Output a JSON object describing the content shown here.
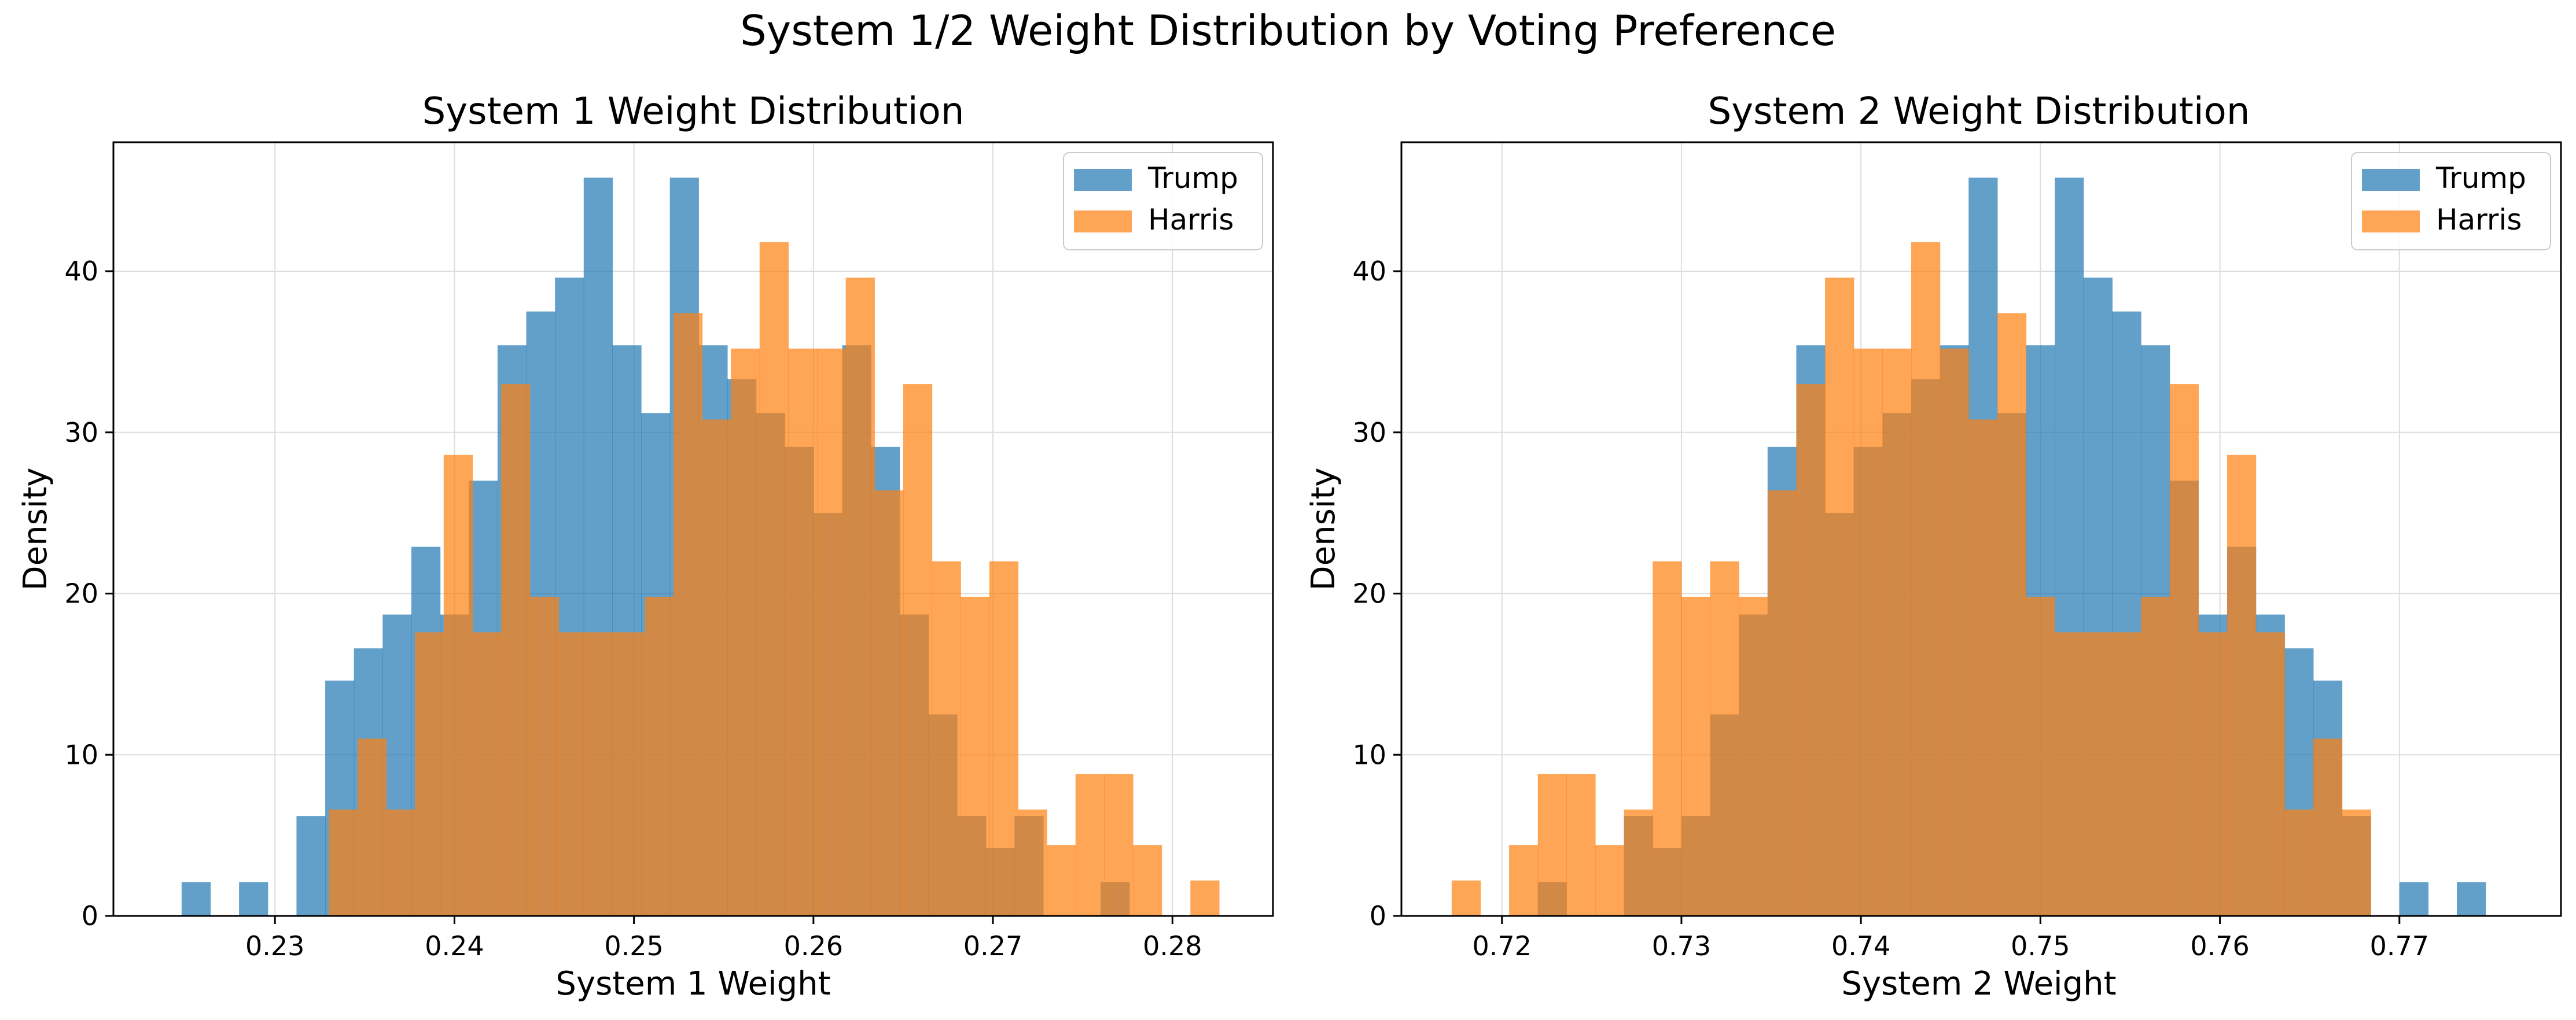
{
  "figure": {
    "title": "System 1/2 Weight Distribution by Voting Preference"
  },
  "colors": {
    "trump": "#1f77b4",
    "harris": "#ff7f0e",
    "grid": "#dddddd",
    "axis": "#000000"
  },
  "chart_data": [
    {
      "type": "histogram",
      "title": "System 1 Weight Distribution",
      "xlabel": "System 1 Weight",
      "ylabel": "Density",
      "xlim": [
        0.221,
        0.2856
      ],
      "ylim": [
        0,
        48
      ],
      "xticks": [
        0.23,
        0.24,
        0.25,
        0.26,
        0.27,
        0.28
      ],
      "xtick_labels": [
        "0.23",
        "0.24",
        "0.25",
        "0.26",
        "0.27",
        "0.28"
      ],
      "yticks": [
        0,
        10,
        20,
        30,
        40
      ],
      "ytick_labels": [
        "0",
        "10",
        "20",
        "30",
        "40"
      ],
      "grid": true,
      "legend_position": "top-right",
      "series": [
        {
          "name": "Trump",
          "color_key": "trump",
          "bins_start": 0.2248,
          "bin_width": 0.0016,
          "values": [
            2.1,
            0,
            2.1,
            0,
            6.2,
            14.6,
            16.6,
            18.7,
            22.9,
            18.7,
            27.0,
            35.4,
            37.5,
            39.6,
            45.8,
            35.4,
            31.2,
            45.8,
            35.4,
            33.3,
            31.2,
            29.1,
            25.0,
            35.4,
            29.1,
            18.7,
            12.5,
            6.2,
            4.2,
            6.2,
            0,
            0,
            2.1
          ]
        },
        {
          "name": "Harris",
          "color_key": "harris",
          "bins_start": 0.2218,
          "bin_width": 0.0016,
          "values": [
            0,
            0,
            0,
            0,
            0,
            0,
            0,
            6.6,
            11.0,
            6.6,
            17.6,
            28.6,
            17.6,
            33.0,
            19.8,
            17.6,
            17.6,
            17.6,
            19.8,
            37.4,
            30.8,
            35.2,
            41.8,
            35.2,
            35.2,
            39.6,
            26.4,
            33.0,
            22.0,
            19.8,
            22.0,
            6.6,
            4.4,
            8.8,
            8.8,
            4.4,
            0,
            2.2
          ]
        }
      ]
    },
    {
      "type": "histogram",
      "title": "System 2 Weight Distribution",
      "xlabel": "System 2 Weight",
      "ylabel": "Density",
      "xlim": [
        0.7144,
        0.779
      ],
      "ylim": [
        0,
        48
      ],
      "xticks": [
        0.72,
        0.73,
        0.74,
        0.75,
        0.76,
        0.77
      ],
      "xtick_labels": [
        "0.72",
        "0.73",
        "0.74",
        "0.75",
        "0.76",
        "0.77"
      ],
      "yticks": [
        0,
        10,
        20,
        30,
        40
      ],
      "ytick_labels": [
        "0",
        "10",
        "20",
        "30",
        "40"
      ],
      "grid": true,
      "legend_position": "top-right",
      "series": [
        {
          "name": "Trump",
          "color_key": "trump",
          "bins_start": 0.722,
          "bin_width": 0.0016,
          "values": [
            2.1,
            0,
            0,
            6.2,
            4.2,
            6.2,
            12.5,
            18.7,
            29.1,
            35.4,
            25.0,
            29.1,
            31.2,
            33.3,
            35.4,
            45.8,
            31.2,
            35.4,
            45.8,
            39.6,
            37.5,
            35.4,
            27.0,
            18.7,
            22.9,
            18.7,
            16.6,
            14.6,
            6.2,
            0,
            2.1,
            0,
            2.1
          ]
        },
        {
          "name": "Harris",
          "color_key": "harris",
          "bins_start": 0.7172,
          "bin_width": 0.0016,
          "values": [
            2.2,
            0,
            4.4,
            8.8,
            8.8,
            4.4,
            6.6,
            22.0,
            19.8,
            22.0,
            19.8,
            26.4,
            33.0,
            39.6,
            35.2,
            35.2,
            41.8,
            35.2,
            30.8,
            37.4,
            19.8,
            17.6,
            17.6,
            17.6,
            19.8,
            33.0,
            17.6,
            28.6,
            17.6,
            6.6,
            11.0,
            6.6
          ]
        }
      ]
    }
  ]
}
